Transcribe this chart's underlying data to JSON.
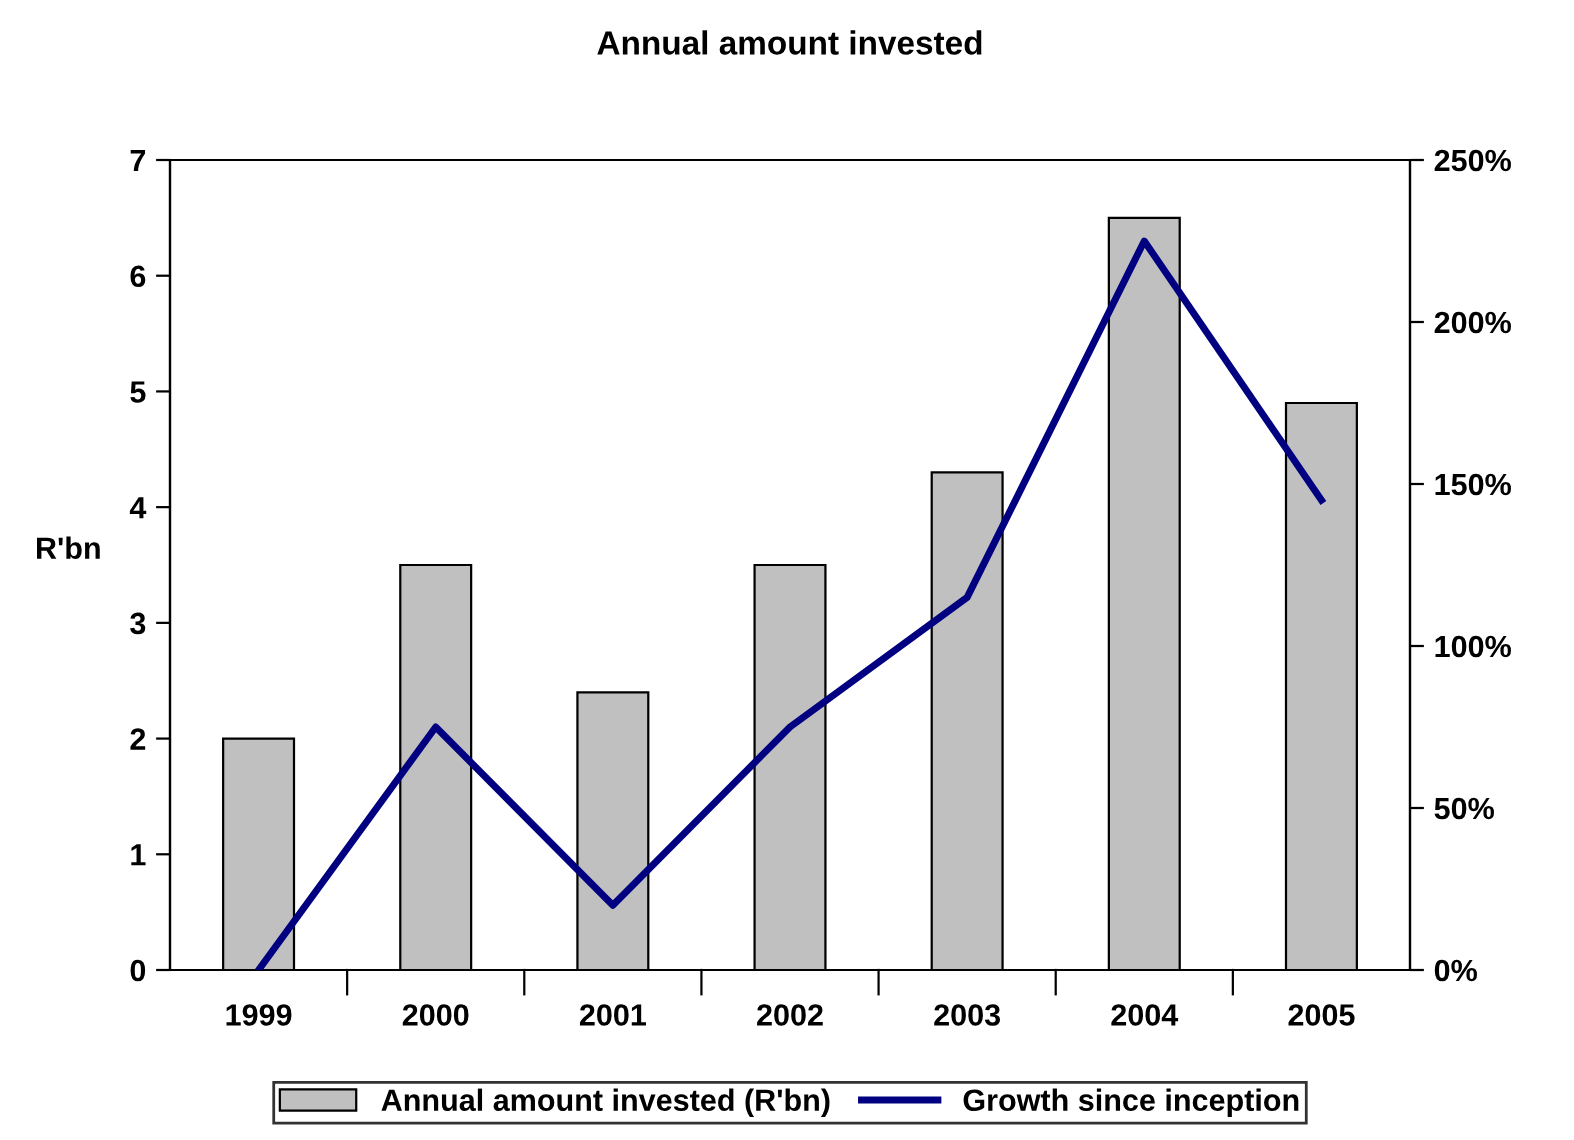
{
  "chart_data": {
    "type": "bar",
    "title": "Annual amount invested",
    "ylabel": "R'bn",
    "categories": [
      "1999",
      "2000",
      "2001",
      "2002",
      "2003",
      "2004",
      "2005"
    ],
    "series": [
      {
        "name": "Annual amount invested (R'bn)",
        "color": "#c0c0c0",
        "values": [
          2.0,
          3.5,
          2.4,
          3.5,
          4.3,
          6.5,
          4.9
        ]
      },
      {
        "name": "Growth since inception",
        "type": "line",
        "axis": "y2",
        "color": "#000080",
        "values": [
          0,
          75,
          20,
          75,
          115,
          225,
          145
        ],
        "marker": "none",
        "line_style": "solid"
      }
    ],
    "ylim": [
      0,
      7
    ],
    "yticks": [
      0,
      1,
      2,
      3,
      4,
      5,
      6,
      7
    ],
    "y2lim": [
      0,
      250
    ],
    "y2ticks": [
      {
        "value": 0,
        "label": "0%"
      },
      {
        "value": 50,
        "label": "50%"
      },
      {
        "value": 100,
        "label": "100%"
      },
      {
        "value": 150,
        "label": "150%"
      },
      {
        "value": 200,
        "label": "200%"
      },
      {
        "value": 250,
        "label": "250%"
      }
    ],
    "grid": false,
    "legend": "bottom"
  }
}
